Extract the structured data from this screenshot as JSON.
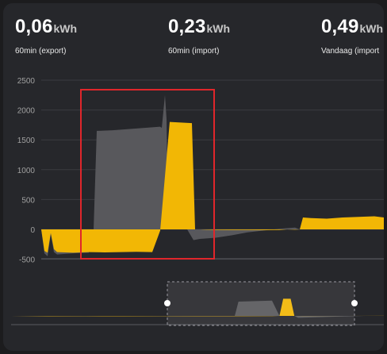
{
  "stats": [
    {
      "value": "0,06",
      "unit": "kWh",
      "label": "60min (export)"
    },
    {
      "value": "0,23",
      "unit": "kWh",
      "label": "60min (import)"
    },
    {
      "value": "0,49",
      "unit": "kWh",
      "label": "Vandaag (import"
    }
  ],
  "colors": {
    "import": "#f2b705",
    "export": "#58585c",
    "highlight": "#e0262b",
    "background": "#26272b"
  },
  "chart_data": {
    "type": "area",
    "yticks": [
      "2500",
      "2000",
      "1500",
      "1000",
      "500",
      "0",
      "-500"
    ],
    "ylim": [
      -500,
      2500
    ],
    "series": [
      {
        "color": "#f2b705",
        "points": [
          [
            0,
            0
          ],
          [
            2,
            -360
          ],
          [
            4,
            -390
          ],
          [
            6,
            -60
          ],
          [
            8,
            -330
          ],
          [
            10,
            -380
          ],
          [
            20,
            -390
          ],
          [
            30,
            -380
          ],
          [
            40,
            -385
          ],
          [
            50,
            -380
          ],
          [
            60,
            -375
          ],
          [
            70,
            -380
          ],
          [
            75,
            -20
          ],
          [
            81,
            1800
          ],
          [
            88,
            1790
          ],
          [
            95,
            1780
          ],
          [
            97,
            0
          ],
          [
            100,
            0
          ],
          [
            104,
            -5
          ],
          [
            110,
            -8
          ],
          [
            120,
            -10
          ],
          [
            130,
            -10
          ],
          [
            140,
            -12
          ],
          [
            150,
            -10
          ],
          [
            155,
            0
          ],
          [
            160,
            -5
          ],
          [
            163,
            0
          ],
          [
            164,
            100
          ],
          [
            165,
            200
          ],
          [
            170,
            190
          ],
          [
            180,
            180
          ],
          [
            190,
            200
          ],
          [
            200,
            210
          ],
          [
            210,
            220
          ],
          [
            216,
            200
          ]
        ]
      },
      {
        "color": "#58585c",
        "points": [
          [
            0,
            0
          ],
          [
            2,
            -400
          ],
          [
            4,
            -450
          ],
          [
            6,
            -80
          ],
          [
            8,
            -380
          ],
          [
            10,
            -420
          ],
          [
            20,
            -400
          ],
          [
            30,
            -390
          ],
          [
            33,
            -10
          ],
          [
            35,
            1650
          ],
          [
            45,
            1660
          ],
          [
            55,
            1680
          ],
          [
            65,
            1700
          ],
          [
            75,
            1720
          ],
          [
            76,
            1700
          ],
          [
            78,
            2250
          ],
          [
            79,
            1850
          ],
          [
            80,
            0
          ],
          [
            85,
            0
          ],
          [
            92,
            0
          ],
          [
            96,
            -180
          ],
          [
            100,
            -160
          ],
          [
            110,
            -140
          ],
          [
            120,
            -100
          ],
          [
            130,
            -50
          ],
          [
            140,
            -20
          ],
          [
            150,
            10
          ],
          [
            160,
            30
          ],
          [
            163,
            0
          ]
        ]
      }
    ]
  },
  "navigator": {
    "series": [
      {
        "color": "#f2b705",
        "points": [
          [
            0,
            0
          ],
          [
            10,
            -30
          ],
          [
            20,
            -25
          ],
          [
            30,
            -30
          ],
          [
            40,
            -25
          ],
          [
            50,
            -30
          ],
          [
            60,
            -30
          ],
          [
            70,
            -20
          ],
          [
            72,
            0
          ],
          [
            73,
            1800
          ],
          [
            75,
            1800
          ],
          [
            76,
            0
          ],
          [
            80,
            -10
          ],
          [
            90,
            -5
          ],
          [
            100,
            10
          ]
        ]
      },
      {
        "color": "#58585c",
        "points": [
          [
            0,
            0
          ],
          [
            10,
            -40
          ],
          [
            20,
            -35
          ],
          [
            30,
            -35
          ],
          [
            40,
            -30
          ],
          [
            50,
            -25
          ],
          [
            59,
            -30
          ],
          [
            60,
            -10
          ],
          [
            61,
            1500
          ],
          [
            70,
            1600
          ],
          [
            72,
            0
          ],
          [
            76,
            0
          ],
          [
            77,
            -200
          ],
          [
            85,
            -100
          ],
          [
            95,
            0
          ]
        ]
      }
    ]
  }
}
